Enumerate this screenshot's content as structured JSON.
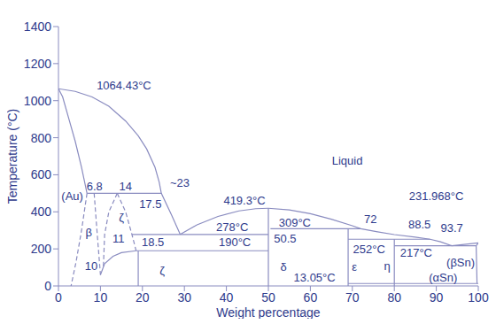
{
  "chart_data": {
    "type": "line",
    "x_label": "Weight percentage",
    "y_label": "Temperature (°C)",
    "xlim": [
      0,
      100
    ],
    "xticks": [
      0,
      10,
      20,
      30,
      40,
      50,
      60,
      70,
      80,
      90,
      100
    ],
    "ylim": [
      0,
      1400
    ],
    "yticks": [
      0,
      200,
      400,
      600,
      800,
      1000,
      1200,
      1400
    ],
    "grid": false,
    "color": "#8a8cc0",
    "series": [
      {
        "x": [
          0,
          4,
          8,
          12,
          16,
          19,
          21,
          23,
          24,
          24.5,
          27,
          29
        ],
        "values": [
          1064.43,
          1050,
          1020,
          970,
          890,
          810,
          740,
          640,
          560,
          500,
          380,
          278
        ]
      },
      {
        "x": [
          0,
          1,
          2.5,
          4,
          5.5,
          6.8
        ],
        "values": [
          1064.43,
          1020,
          900,
          780,
          640,
          500
        ]
      },
      {
        "x": [
          6.8,
          24.5
        ],
        "values": [
          500,
          500
        ]
      },
      {
        "x": [
          6.8,
          5.5,
          4.2,
          3
        ],
        "values": [
          500,
          300,
          130,
          0
        ],
        "line_style": "dashed"
      },
      {
        "x": [
          8.5,
          9.2,
          10
        ],
        "values": [
          500,
          290,
          60
        ],
        "line_style": "dashed"
      },
      {
        "x": [
          14,
          12,
          11,
          10.7
        ],
        "values": [
          500,
          400,
          278,
          102
        ],
        "line_style": "dashed"
      },
      {
        "x": [
          14,
          16,
          17.5,
          18.5
        ],
        "values": [
          500,
          400,
          278,
          190
        ],
        "line_style": "dashed"
      },
      {
        "x": [
          10,
          11,
          13,
          15,
          18.5
        ],
        "values": [
          60,
          120,
          160,
          180,
          190
        ]
      },
      {
        "x": [
          19,
          19
        ],
        "values": [
          0,
          190
        ]
      },
      {
        "x": [
          17.5,
          50
        ],
        "values": [
          278,
          278
        ]
      },
      {
        "x": [
          18.5,
          50
        ],
        "values": [
          190,
          190
        ]
      },
      {
        "x": [
          29,
          33,
          38,
          43,
          47,
          50
        ],
        "values": [
          278,
          330,
          375,
          405,
          417,
          419.3
        ]
      },
      {
        "x": [
          50,
          50
        ],
        "values": [
          0,
          419.3
        ]
      },
      {
        "x": [
          50,
          55,
          60,
          65,
          70,
          72,
          76,
          80,
          85,
          88.5,
          91,
          93.7
        ],
        "values": [
          419.3,
          410,
          390,
          360,
          325,
          309,
          292,
          277,
          263,
          252,
          238,
          217
        ]
      },
      {
        "x": [
          93.7,
          100
        ],
        "values": [
          217,
          231.968
        ]
      },
      {
        "x": [
          50.5,
          72
        ],
        "values": [
          309,
          309
        ]
      },
      {
        "x": [
          69,
          69
        ],
        "values": [
          0,
          309
        ]
      },
      {
        "x": [
          69,
          88.5
        ],
        "values": [
          252,
          252
        ]
      },
      {
        "x": [
          80,
          80
        ],
        "values": [
          0,
          252
        ]
      },
      {
        "x": [
          80,
          99.5
        ],
        "values": [
          217,
          217
        ]
      },
      {
        "x": [
          100,
          99.5,
          99.7
        ],
        "values": [
          231.968,
          217,
          13.05
        ]
      },
      {
        "x": [
          69,
          100
        ],
        "values": [
          13.05,
          13.05
        ]
      }
    ],
    "annotations": [
      {
        "text": "1064.43°C"
      },
      {
        "text": "Liquid"
      },
      {
        "text": "(Au)"
      },
      {
        "text": "6.8"
      },
      {
        "text": "14"
      },
      {
        "text": "~23"
      },
      {
        "text": "β"
      },
      {
        "text": "ζ"
      },
      {
        "text": "11"
      },
      {
        "text": "17.5"
      },
      {
        "text": "10"
      },
      {
        "text": "18.5"
      },
      {
        "text": "ζ"
      },
      {
        "text": "419.3°C"
      },
      {
        "text": "278°C"
      },
      {
        "text": "309°C"
      },
      {
        "text": "50.5"
      },
      {
        "text": "190°C"
      },
      {
        "text": "δ"
      },
      {
        "text": "13.05°C"
      },
      {
        "text": "72"
      },
      {
        "text": "ε"
      },
      {
        "text": "252°C"
      },
      {
        "text": "η"
      },
      {
        "text": "217°C"
      },
      {
        "text": "231.968°C"
      },
      {
        "text": "88.5"
      },
      {
        "text": "93.7"
      },
      {
        "text": "(βSn)"
      },
      {
        "text": "(αSn)"
      }
    ]
  }
}
